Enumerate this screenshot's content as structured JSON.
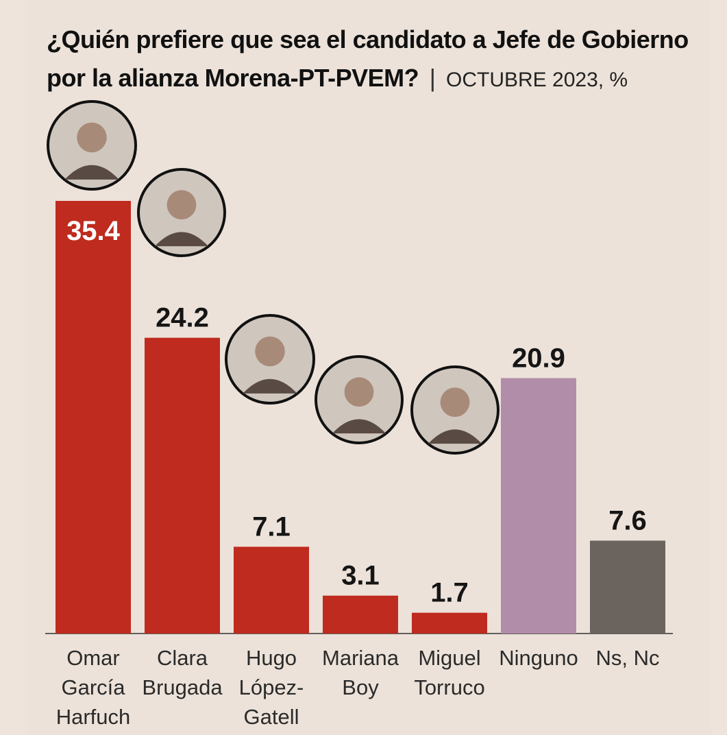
{
  "title": {
    "main": "¿Quién prefiere que sea el candidato a Jefe de Gobierno por la alianza Morena-PT-PVEM?",
    "separator": "|",
    "subtitle": "OCTUBRE 2023, %"
  },
  "chart_data": {
    "type": "bar",
    "title": "¿Quién prefiere que sea el candidato a Jefe de Gobierno por la alianza Morena-PT-PVEM?",
    "subtitle": "OCTUBRE 2023, %",
    "categories": [
      "Omar García Harfuch",
      "Clara Brugada",
      "Hugo López-Gatell",
      "Mariana Boy",
      "Miguel Torruco",
      "Ninguno",
      "Ns, Nc"
    ],
    "category_lines": [
      [
        "Omar",
        "García",
        "Harfuch"
      ],
      [
        "Clara",
        "Brugada"
      ],
      [
        "Hugo",
        "López-",
        "Gatell"
      ],
      [
        "Mariana",
        "Boy"
      ],
      [
        "Miguel",
        "Torruco"
      ],
      [
        "Ninguno"
      ],
      [
        "Ns, Nc"
      ]
    ],
    "values": [
      35.4,
      24.2,
      7.1,
      3.1,
      1.7,
      20.9,
      7.6
    ],
    "value_labels": [
      "35.4",
      "24.2",
      "7.1",
      "3.1",
      "1.7",
      "20.9",
      "7.6"
    ],
    "colors": [
      "#bf2b1e",
      "#bf2b1e",
      "#bf2b1e",
      "#bf2b1e",
      "#bf2b1e",
      "#b28daa",
      "#6b635d"
    ],
    "photos": [
      true,
      true,
      true,
      true,
      true,
      false,
      false
    ],
    "xlabel": "",
    "ylabel": "",
    "ylim": [
      0,
      35.4
    ],
    "grid": false,
    "legend": "none"
  }
}
